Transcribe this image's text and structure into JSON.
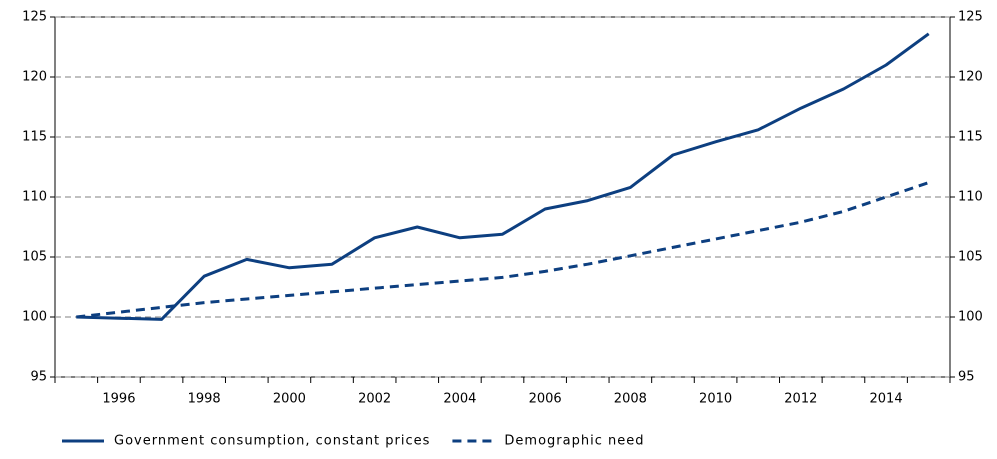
{
  "chart_data": {
    "type": "line",
    "categories": [
      null,
      "1996",
      null,
      "1998",
      null,
      "2000",
      null,
      "2002",
      null,
      "2004",
      null,
      "2006",
      null,
      "2008",
      null,
      "2010",
      null,
      "2012",
      null,
      "2014",
      null
    ],
    "series": [
      {
        "name": "Government consumption, constant prices",
        "color": "#0d3f80",
        "dash": false,
        "values": [
          100,
          99.9,
          99.8,
          103.4,
          104.8,
          104.1,
          104.4,
          106.6,
          107.5,
          106.6,
          106.9,
          109,
          109.7,
          110.8,
          113.5,
          114.6,
          115.6,
          117.4,
          119,
          121,
          123.6
        ]
      },
      {
        "name": "Demographic need",
        "color": "#0d3f80",
        "dash": true,
        "values": [
          100,
          100.4,
          100.8,
          101.2,
          101.5,
          101.8,
          102.1,
          102.4,
          102.7,
          103,
          103.3,
          103.8,
          104.4,
          105.1,
          105.8,
          106.5,
          107.2,
          107.9,
          108.8,
          110,
          111.2
        ]
      }
    ],
    "ylim": [
      95,
      125
    ],
    "yticks": [
      95,
      100,
      105,
      110,
      115,
      120,
      125
    ],
    "y2lim": [
      95,
      125
    ],
    "y2ticks": [
      95,
      100,
      105,
      110,
      115,
      120,
      125
    ],
    "grid": true,
    "legend": "bottom"
  }
}
